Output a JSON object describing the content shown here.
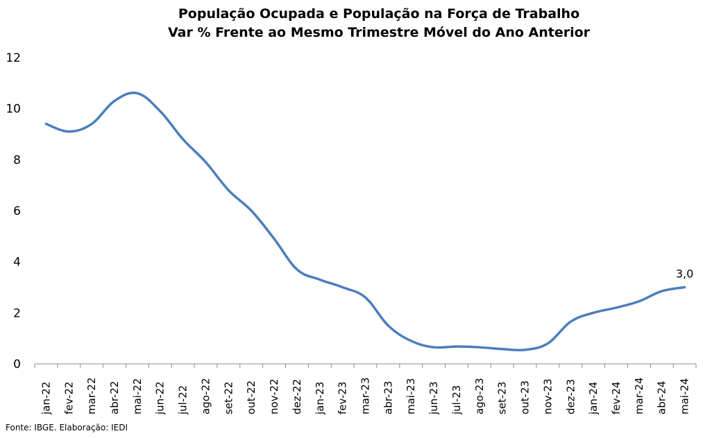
{
  "chart_data": {
    "type": "line",
    "title": "População Ocupada e População na Força de Trabalho",
    "subtitle": "Var % Frente ao Mesmo Trimestre Móvel do Ano Anterior",
    "xlabel": "",
    "ylabel": "",
    "ylim": [
      0,
      12
    ],
    "yticks": [
      "0",
      "2",
      "4",
      "6",
      "8",
      "10",
      "12"
    ],
    "grid": false,
    "legend": "none",
    "categories": [
      "jan-22",
      "fev-22",
      "mar-22",
      "abr-22",
      "mai-22",
      "jun-22",
      "jul-22",
      "ago-22",
      "set-22",
      "out-22",
      "nov-22",
      "dez-22",
      "jan-23",
      "fev-23",
      "mar-23",
      "abr-23",
      "mai-23",
      "jun-23",
      "jul-23",
      "ago-23",
      "set-23",
      "out-23",
      "nov-23",
      "dez-23",
      "jan-24",
      "fev-24",
      "mar-24",
      "abr-24",
      "mai-24"
    ],
    "series": [
      {
        "color": "#4a7ebb",
        "values": [
          9.4,
          9.1,
          9.4,
          10.3,
          10.6,
          9.9,
          8.8,
          7.9,
          6.8,
          6.0,
          4.9,
          3.7,
          3.3,
          3.0,
          2.6,
          1.5,
          0.9,
          0.65,
          0.68,
          0.65,
          0.58,
          0.55,
          0.8,
          1.65,
          2.0,
          2.2,
          2.45,
          2.85,
          3.0
        ]
      }
    ],
    "data_labels": [
      {
        "index": 28,
        "text": "3,0"
      }
    ]
  },
  "footer": {
    "source": "Fonte: IBGE. Elaboração: IEDI"
  }
}
